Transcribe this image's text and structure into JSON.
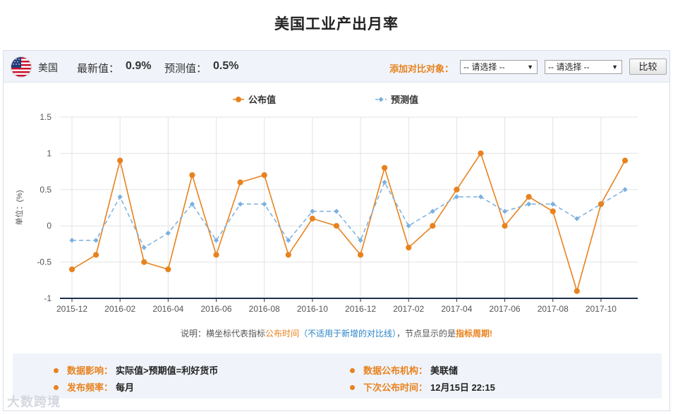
{
  "page_title": "美国工业产出月率",
  "info_bar": {
    "country": "美国",
    "latest_label": "最新值：",
    "latest_value": "0.9%",
    "forecast_label": "预测值：",
    "forecast_value": "0.5%",
    "compare_label": "添加对比对象：",
    "select1": "-- 请选择 --",
    "select2": "-- 请选择 --",
    "compare_button": "比较"
  },
  "chart_data": {
    "type": "line",
    "legend_position": "top-center",
    "ylabel": "单位：(%)",
    "ylim": [
      -1,
      1.5
    ],
    "yticks": [
      1.5,
      1,
      0.5,
      0,
      -0.5,
      -1
    ],
    "x": [
      "2015-12",
      "2016-01",
      "2016-02",
      "2016-03",
      "2016-04",
      "2016-05",
      "2016-06",
      "2016-07",
      "2016-08",
      "2016-09",
      "2016-10",
      "2016-11",
      "2016-12",
      "2017-01",
      "2017-02",
      "2017-03",
      "2017-04",
      "2017-05",
      "2017-06",
      "2017-07",
      "2017-08",
      "2017-09",
      "2017-10",
      "2017-11"
    ],
    "xtick_labels": [
      "2015-12",
      "2016-02",
      "2016-04",
      "2016-06",
      "2016-08",
      "2016-10",
      "2016-12",
      "2017-02",
      "2017-04",
      "2017-06",
      "2017-08",
      "2017-10"
    ],
    "grid": true,
    "series": [
      {
        "name": "公布值",
        "color": "#e8821e",
        "style": "solid",
        "values": [
          -0.6,
          -0.4,
          0.9,
          -0.5,
          -0.6,
          0.7,
          -0.4,
          0.6,
          0.7,
          -0.4,
          0.1,
          0.0,
          -0.4,
          0.8,
          -0.3,
          0.0,
          0.5,
          1.0,
          0.0,
          0.4,
          0.2,
          -0.9,
          0.3,
          0.9
        ]
      },
      {
        "name": "预测值",
        "color": "#7ab0df",
        "style": "dashed",
        "values": [
          -0.2,
          -0.2,
          0.4,
          -0.3,
          -0.1,
          0.3,
          -0.2,
          0.3,
          0.3,
          -0.2,
          0.2,
          0.2,
          -0.2,
          0.6,
          0.0,
          0.2,
          0.4,
          0.4,
          0.2,
          0.3,
          0.3,
          0.1,
          0.3,
          0.5
        ]
      }
    ]
  },
  "note": {
    "prefix": "说明：横坐标代表指标",
    "publish_time": "公布时间",
    "paren": "（不适用于新增的对比线）",
    "middle": "，节点显示的是",
    "period": "指标周期",
    "suffix": "!"
  },
  "footer": {
    "impact_label": "数据影响：",
    "impact_value": "实际值>预期值=利好货币",
    "freq_label": "发布频率：",
    "freq_value": "每月",
    "org_label": "数据公布机构：",
    "org_value": "美联储",
    "next_label": "下次公布时间：",
    "next_value": "12月15日 22:15"
  },
  "watermark": "大数跨境"
}
